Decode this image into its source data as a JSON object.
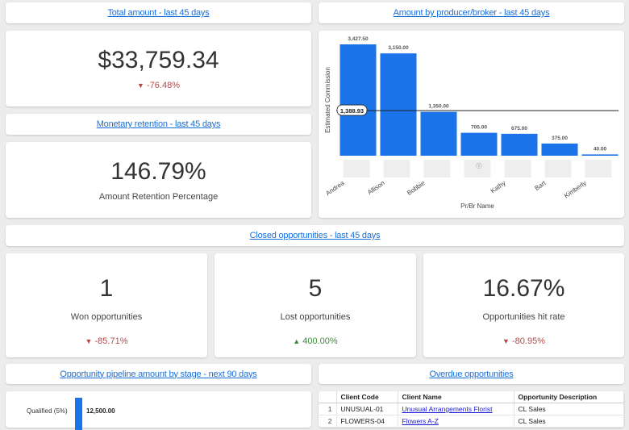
{
  "headers": {
    "total_amount": "Total amount - last 45 days",
    "amount_by_producer": "Amount by producer/broker - last 45 days",
    "monetary_retention": "Monetary retention - last 45 days",
    "closed_opportunities": "Closed opportunities - last 45 days",
    "pipeline": "Opportunity pipeline amount by stage - next 90 days",
    "overdue": "Overdue opportunities"
  },
  "total_amount": {
    "value": "$33,759.34",
    "change": "-76.48%"
  },
  "retention": {
    "value": "146.79%",
    "label": "Amount Retention Percentage"
  },
  "won": {
    "value": "1",
    "label": "Won opportunities",
    "change": "-85.71%"
  },
  "lost": {
    "value": "5",
    "label": "Lost opportunities",
    "change": "400.00%"
  },
  "hit_rate": {
    "value": "16.67%",
    "label": "Opportunities hit rate",
    "change": "-80.95%"
  },
  "colors": {
    "bar": "#1a73e8",
    "link": "#1a6fd8",
    "down": "#b34a4a",
    "up": "#3a8a3a"
  },
  "chart_data": {
    "type": "bar",
    "ylabel": "Estimated Commission",
    "xlabel": "Pr/Br Name",
    "categories": [
      "Andrea",
      "Allison",
      "Bobbie",
      "",
      "Kathy",
      "Bart",
      "Kimberly"
    ],
    "values": [
      3427.5,
      3150.0,
      1350.0,
      705.0,
      675.0,
      375.0,
      40.0
    ],
    "value_labels": [
      "3,427.50",
      "3,150.00",
      "1,350.00",
      "705.00",
      "675.00",
      "375.00",
      "40.00"
    ],
    "average_line": 1388.93,
    "average_label": "1,388.93",
    "ylim": [
      0,
      3427.5
    ]
  },
  "pipeline": {
    "stage": "Qualified (5%)",
    "value_label": "12,500.00"
  },
  "overdue_table": {
    "columns": [
      "Client Code",
      "Client Name",
      "Opportunity Description"
    ],
    "rows": [
      {
        "num": "1",
        "code": "UNUSUAL-01",
        "name": "Unusual Arrangements Florist",
        "desc": "CL Sales"
      },
      {
        "num": "2",
        "code": "FLOWERS-04",
        "name": "Flowers A-Z",
        "desc": "CL Sales"
      }
    ]
  }
}
